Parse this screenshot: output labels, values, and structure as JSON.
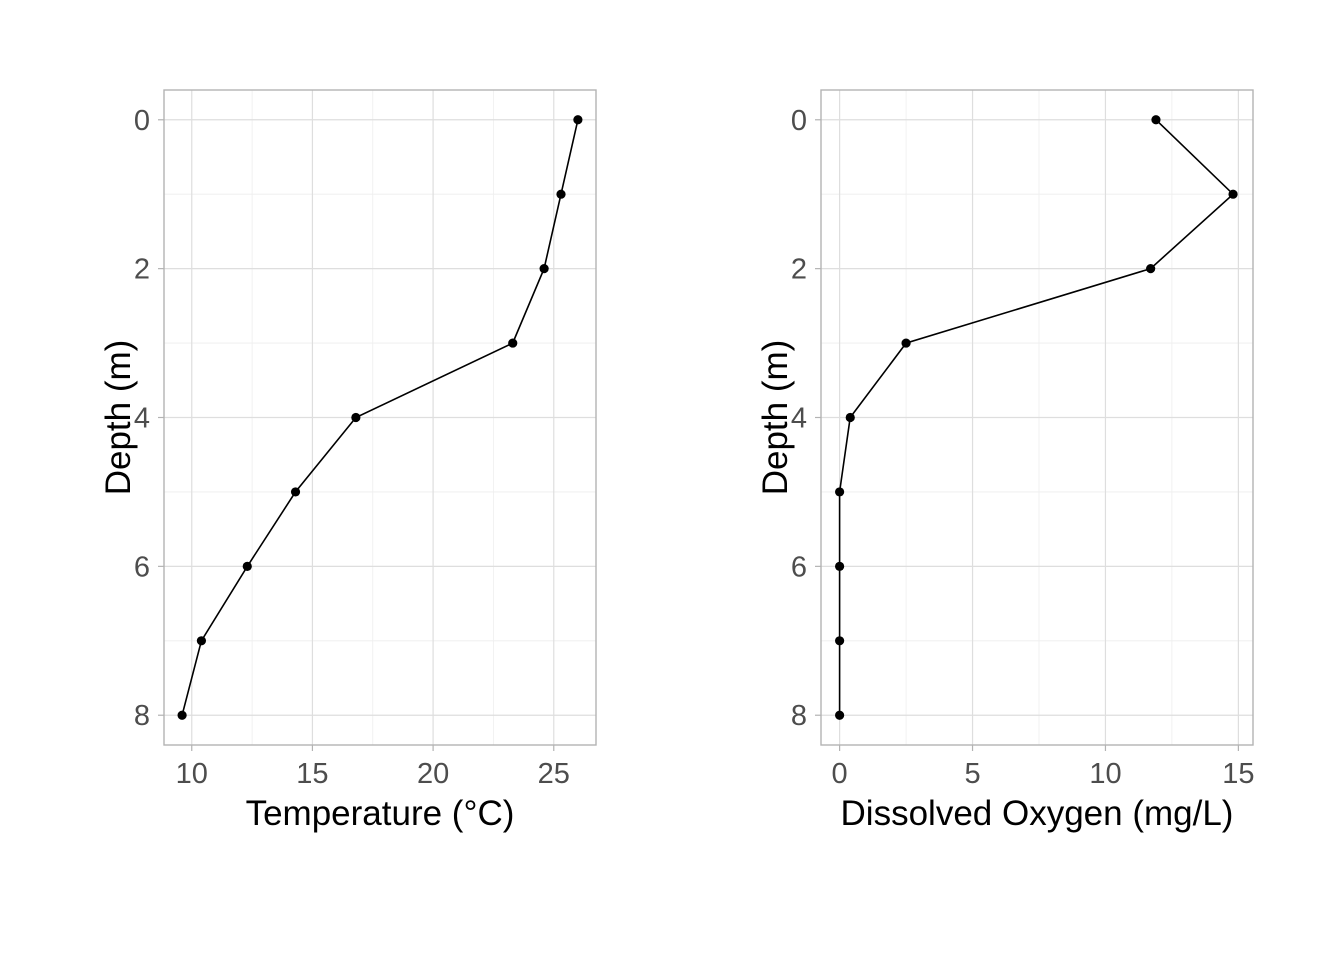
{
  "chart_data": [
    {
      "type": "line",
      "title": "",
      "xlabel": "Temperature (°C)",
      "ylabel": "Depth (m)",
      "xlim": [
        8.85,
        26.75
      ],
      "ylim": [
        8.4,
        -0.4
      ],
      "y_reversed": true,
      "x_ticks": [
        10,
        15,
        20,
        25
      ],
      "y_ticks": [
        0,
        2,
        4,
        6,
        8
      ],
      "grid": true,
      "series": [
        {
          "points": [
            {
              "x": 26.0,
              "y": 0
            },
            {
              "x": 25.3,
              "y": 1
            },
            {
              "x": 24.6,
              "y": 2
            },
            {
              "x": 23.3,
              "y": 3
            },
            {
              "x": 16.8,
              "y": 4
            },
            {
              "x": 14.3,
              "y": 5
            },
            {
              "x": 12.3,
              "y": 6
            },
            {
              "x": 10.4,
              "y": 7
            },
            {
              "x": 9.6,
              "y": 8
            }
          ]
        }
      ]
    },
    {
      "type": "line",
      "title": "",
      "xlabel": "Dissolved Oxygen (mg/L)",
      "ylabel": "Depth (m)",
      "xlim": [
        -0.7,
        15.55
      ],
      "ylim": [
        8.4,
        -0.4
      ],
      "y_reversed": true,
      "x_ticks": [
        0,
        5,
        10,
        15
      ],
      "y_ticks": [
        0,
        2,
        4,
        6,
        8
      ],
      "grid": true,
      "series": [
        {
          "points": [
            {
              "x": 11.9,
              "y": 0
            },
            {
              "x": 14.8,
              "y": 1
            },
            {
              "x": 11.7,
              "y": 2
            },
            {
              "x": 2.5,
              "y": 3
            },
            {
              "x": 0.4,
              "y": 4
            },
            {
              "x": 0.0,
              "y": 5
            },
            {
              "x": 0.0,
              "y": 6
            },
            {
              "x": 0.0,
              "y": 7
            },
            {
              "x": 0.0,
              "y": 8
            }
          ]
        }
      ]
    }
  ]
}
